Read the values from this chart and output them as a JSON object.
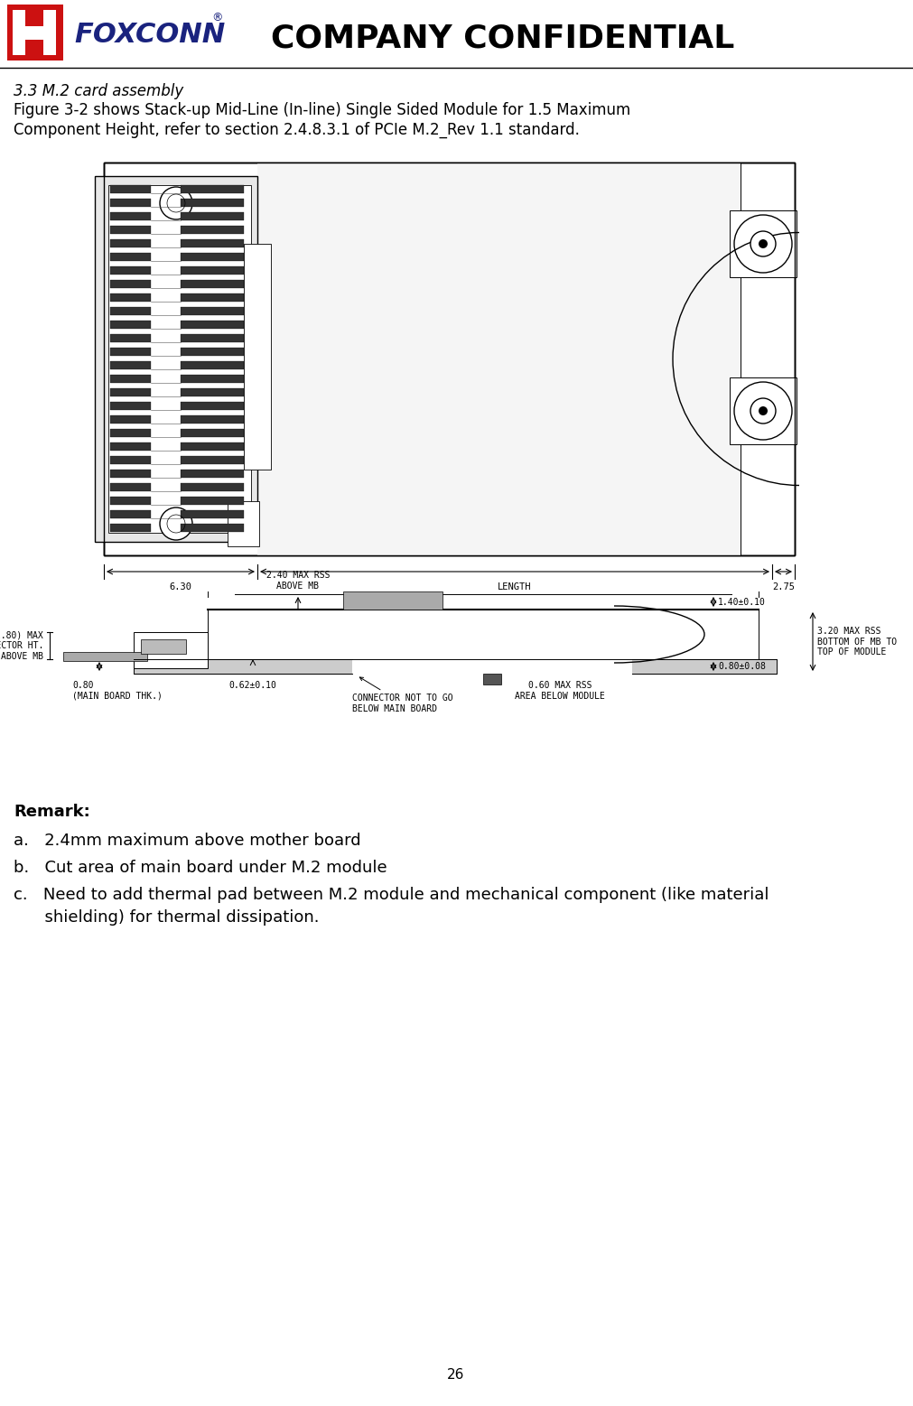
{
  "page_width": 10.11,
  "page_height": 15.57,
  "dpi": 100,
  "bg_color": "#ffffff",
  "header_title": "COMPANY CONFIDENTIAL",
  "header_title_fontsize": 26,
  "section_title": "3.3 M.2 card assembly",
  "section_title_fontsize": 12,
  "description_line1": "Figure 3-2 shows Stack-up Mid-Line (In-line) Single Sided Module for 1.5 Maximum",
  "description_line2": "Component Height, refer to section 2.4.8.3.1 of PCIe M.2_Rev 1.1 standard.",
  "description_fontsize": 12,
  "remark_title": "Remark:",
  "remark_fontsize": 13,
  "remark_items": [
    "a.   2.4mm maximum above mother board",
    "b.   Cut area of main board under M.2 module",
    "c.   Need to add thermal pad between M.2 module and mechanical component (like material",
    "      shielding) for thermal dissipation."
  ],
  "remark_fontsize2": 13,
  "page_number": "26",
  "logo_red_color": "#cc1111",
  "logo_blue_color": "#1a237e",
  "foxconn_text_color": "#1a237e"
}
